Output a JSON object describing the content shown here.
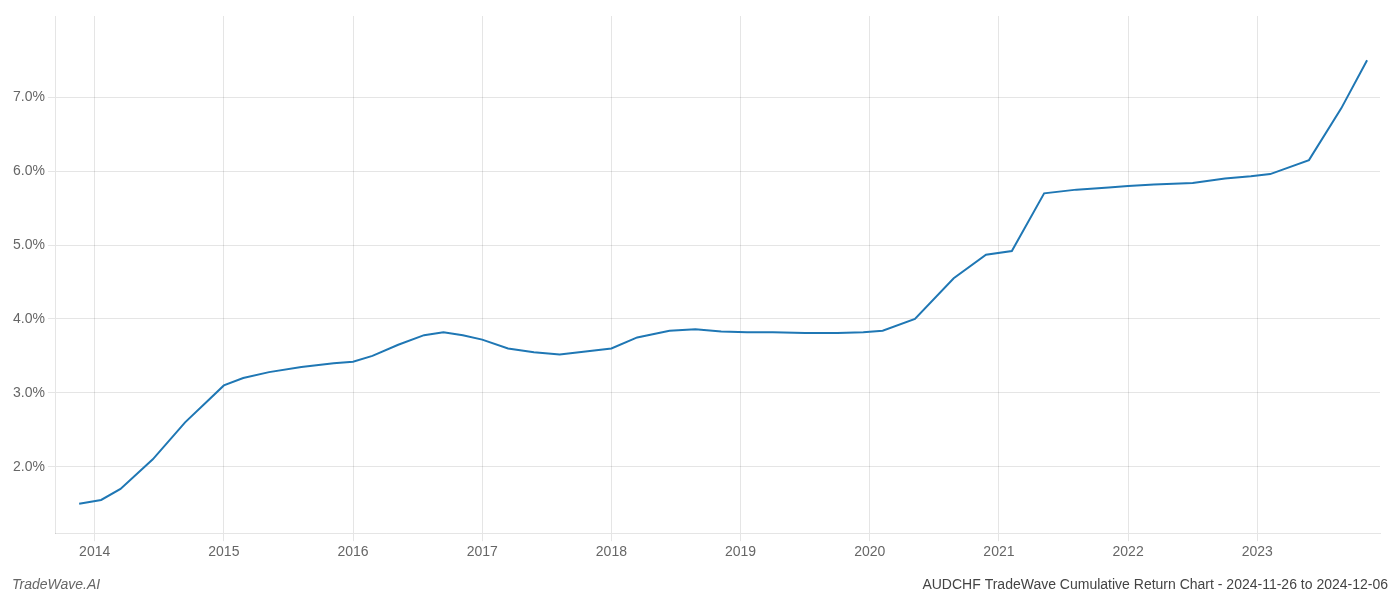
{
  "chart_data": {
    "type": "line",
    "title": "AUDCHF TradeWave Cumulative Return Chart - 2024-11-26 to 2024-12-06",
    "annotations": [
      "TradeWave.AI"
    ],
    "x": [
      2013.88,
      2014.05,
      2014.2,
      2014.45,
      2014.7,
      2014.88,
      2015.0,
      2015.15,
      2015.35,
      2015.6,
      2015.85,
      2016.0,
      2016.15,
      2016.35,
      2016.55,
      2016.7,
      2016.85,
      2017.0,
      2017.2,
      2017.4,
      2017.6,
      2017.8,
      2018.0,
      2018.2,
      2018.45,
      2018.65,
      2018.85,
      2019.05,
      2019.25,
      2019.5,
      2019.75,
      2019.95,
      2020.1,
      2020.35,
      2020.65,
      2020.9,
      2021.1,
      2021.35,
      2021.6,
      2021.85,
      2022.0,
      2022.2,
      2022.5,
      2022.75,
      2022.95,
      2023.1,
      2023.4,
      2023.65,
      2023.85
    ],
    "values": [
      1.5,
      1.55,
      1.7,
      2.1,
      2.6,
      2.9,
      3.1,
      3.2,
      3.28,
      3.35,
      3.4,
      3.42,
      3.5,
      3.65,
      3.78,
      3.82,
      3.78,
      3.72,
      3.6,
      3.55,
      3.52,
      3.56,
      3.6,
      3.75,
      3.84,
      3.86,
      3.83,
      3.82,
      3.82,
      3.81,
      3.81,
      3.82,
      3.84,
      4.0,
      4.55,
      4.87,
      4.92,
      5.7,
      5.75,
      5.78,
      5.8,
      5.82,
      5.84,
      5.9,
      5.93,
      5.96,
      6.15,
      6.85,
      7.5
    ],
    "color": "#1f77b4",
    "xlim": [
      2013.7,
      2023.95
    ],
    "xticks": [
      2014,
      2015,
      2016,
      2017,
      2018,
      2019,
      2020,
      2021,
      2022,
      2023
    ],
    "ylim": [
      1.1,
      8.1
    ],
    "yticks": [
      {
        "value": 2.0,
        "label": "2.0%"
      },
      {
        "value": 3.0,
        "label": "3.0%"
      },
      {
        "value": 4.0,
        "label": "4.0%"
      },
      {
        "value": 5.0,
        "label": "5.0%"
      },
      {
        "value": 6.0,
        "label": "6.0%"
      },
      {
        "value": 7.0,
        "label": "7.0%"
      }
    ],
    "grid": true
  }
}
